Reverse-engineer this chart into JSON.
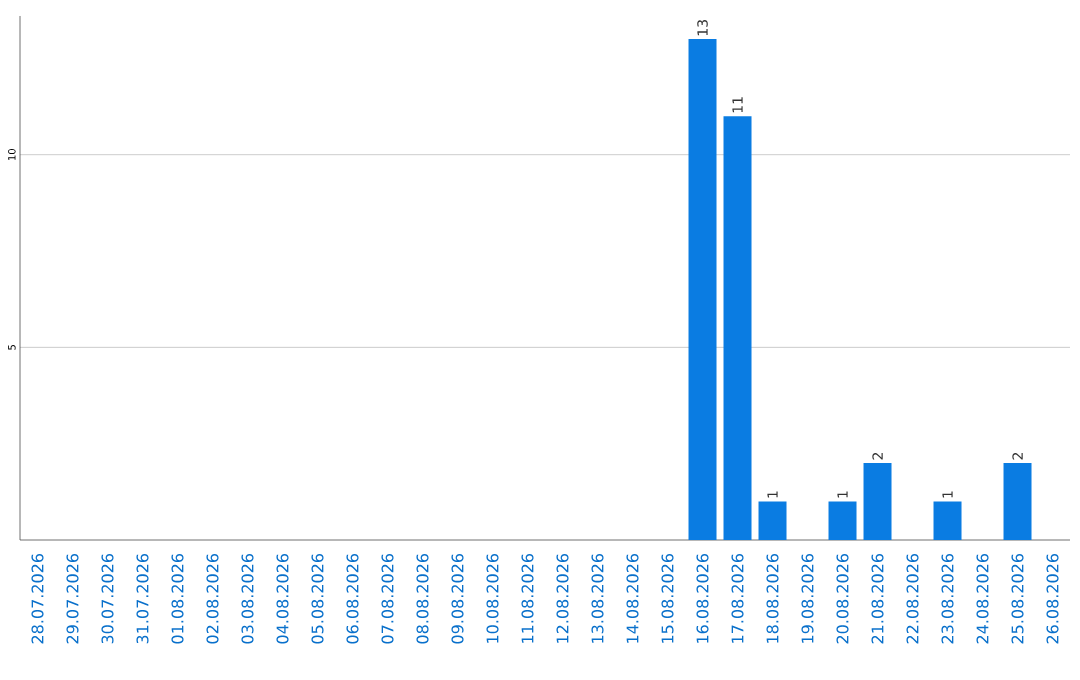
{
  "chart_data": {
    "type": "bar",
    "categories": [
      "28.07.2026",
      "29.07.2026",
      "30.07.2026",
      "31.07.2026",
      "01.08.2026",
      "02.08.2026",
      "03.08.2026",
      "04.08.2026",
      "05.08.2026",
      "06.08.2026",
      "07.08.2026",
      "08.08.2026",
      "09.08.2026",
      "10.08.2026",
      "11.08.2026",
      "12.08.2026",
      "13.08.2026",
      "14.08.2026",
      "15.08.2026",
      "16.08.2026",
      "17.08.2026",
      "18.08.2026",
      "19.08.2026",
      "20.08.2026",
      "21.08.2026",
      "22.08.2026",
      "23.08.2026",
      "24.08.2026",
      "25.08.2026",
      "26.08.2026"
    ],
    "values": [
      0,
      0,
      0,
      0,
      0,
      0,
      0,
      0,
      0,
      0,
      0,
      0,
      0,
      0,
      0,
      0,
      0,
      0,
      0,
      13,
      11,
      1,
      0,
      1,
      2,
      0,
      1,
      0,
      2,
      0
    ],
    "value_labels": [
      null,
      null,
      null,
      null,
      null,
      null,
      null,
      null,
      null,
      null,
      null,
      null,
      null,
      null,
      null,
      null,
      null,
      null,
      null,
      "13",
      "11",
      "1",
      null,
      "1",
      "2",
      null,
      "1",
      null,
      "2",
      null
    ],
    "color": "#0a7ce2",
    "ylim": [
      0,
      13.6
    ],
    "yticks": [
      5,
      10
    ],
    "grid": "y"
  }
}
